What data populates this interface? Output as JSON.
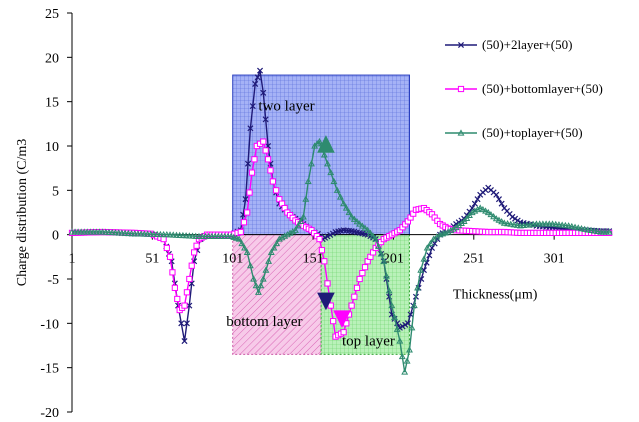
{
  "chart_data": {
    "type": "line",
    "ylabel": "Charge distribution (C/m3",
    "xlabel": "Thickness(μm)",
    "x_ticks": [
      "1",
      "51",
      "101",
      "151",
      "201",
      "251",
      "301"
    ],
    "y_ticks": [
      "25",
      "20",
      "15",
      "10",
      "5",
      "0",
      "-5",
      "-10",
      "-15",
      "-20"
    ],
    "xlim": [
      1,
      337
    ],
    "ylim": [
      -20,
      25
    ],
    "grid": false,
    "legend_position": "right",
    "regions": [
      {
        "label": "two layer",
        "x0": 101,
        "x1": 211,
        "y0": 0,
        "y1": 18,
        "color": "#4a63e6"
      },
      {
        "label": "bottom layer",
        "x0": 101,
        "x1": 156,
        "y0": -13.5,
        "y1": 0,
        "color": "#f0a6d9"
      },
      {
        "label": "top layer",
        "x0": 156,
        "x1": 211,
        "y0": -13.5,
        "y1": 0,
        "color": "#9be29b"
      }
    ],
    "series": [
      {
        "name": "(50)+2layer+(50)",
        "color": "#1f1a78",
        "marker": "x",
        "x": [
          1,
          20,
          40,
          50,
          58,
          63,
          67,
          71,
          74,
          77,
          81,
          85,
          90,
          100,
          106,
          109,
          112,
          115,
          118,
          120,
          123,
          126,
          130,
          135,
          140,
          145,
          150,
          154,
          157,
          160,
          165,
          170,
          175,
          180,
          185,
          190,
          195,
          200,
          205,
          210,
          215,
          220,
          225,
          230,
          235,
          240,
          245,
          250,
          255,
          260,
          265,
          270,
          275,
          280,
          290,
          300,
          310,
          320,
          330,
          337
        ],
        "y": [
          0.2,
          0.3,
          0.1,
          0.1,
          -0.5,
          -3,
          -8,
          -12,
          -8,
          -3,
          -0.5,
          0,
          0,
          0,
          0.5,
          4,
          12,
          17,
          18.5,
          16,
          10,
          6,
          3.5,
          2.5,
          1.8,
          1.2,
          0.4,
          0.1,
          -0.5,
          -0.2,
          0.3,
          0.5,
          0.4,
          0.2,
          0,
          -0.5,
          -3,
          -9,
          -10.5,
          -10,
          -7,
          -4,
          -1.5,
          0,
          0.5,
          1.2,
          1.8,
          3,
          4.5,
          5.3,
          4.5,
          3,
          2,
          1.4,
          1,
          0.8,
          0.6,
          0.5,
          0.4,
          0.4
        ]
      },
      {
        "name": "(50)+bottomlayer+(50)",
        "color": "#ff00ff",
        "marker": "square",
        "x": [
          1,
          20,
          40,
          50,
          58,
          62,
          65,
          68,
          71,
          74,
          77,
          80,
          85,
          90,
          100,
          106,
          110,
          113,
          116,
          120,
          123,
          126,
          130,
          135,
          140,
          145,
          150,
          155,
          158,
          162,
          165,
          170,
          175,
          180,
          185,
          190,
          195,
          200,
          205,
          210,
          215,
          220,
          225,
          230,
          235,
          240,
          250,
          260,
          270,
          280,
          290,
          300,
          310,
          320,
          330,
          337
        ],
        "y": [
          0.2,
          0.3,
          0.2,
          0.1,
          -0.5,
          -2.5,
          -6,
          -8.5,
          -8,
          -5,
          -2,
          -0.5,
          0,
          0,
          0,
          0.3,
          2.5,
          7,
          10,
          10.5,
          8.5,
          6,
          4,
          2.5,
          1.6,
          1,
          0.5,
          -0.5,
          -3,
          -8,
          -11.5,
          -11,
          -8,
          -5,
          -3,
          -1.5,
          -0.5,
          0,
          0.5,
          1.5,
          2.8,
          3,
          2.3,
          1.2,
          0.7,
          0.5,
          0.4,
          0.3,
          0.3,
          0.2,
          0.2,
          0.2,
          0.2,
          0.2,
          0.2,
          0.2
        ]
      },
      {
        "name": "(50)+toplayer+(50)",
        "color": "#2e8b6f",
        "marker": "triangle",
        "x": [
          1,
          20,
          40,
          60,
          80,
          100,
          105,
          110,
          114,
          117,
          120,
          125,
          130,
          135,
          140,
          145,
          148,
          152,
          155,
          158,
          162,
          166,
          170,
          175,
          180,
          185,
          190,
          195,
          200,
          205,
          208,
          211,
          214,
          218,
          222,
          226,
          230,
          235,
          240,
          245,
          250,
          255,
          260,
          265,
          270,
          280,
          290,
          300,
          310,
          320,
          330,
          337
        ],
        "y": [
          0.3,
          0.3,
          0.1,
          0,
          -0.2,
          -0.2,
          -0.5,
          -2,
          -5,
          -6.5,
          -5,
          -2,
          -0.5,
          0,
          0.5,
          2,
          6,
          10,
          10.5,
          9,
          7,
          5,
          3.5,
          2,
          1.2,
          0.5,
          -0.5,
          -3,
          -8,
          -12,
          -15.5,
          -13,
          -8,
          -4,
          -1.5,
          -0.5,
          0,
          0.3,
          0.8,
          1.5,
          2.5,
          3,
          2.5,
          1.8,
          1.3,
          1,
          1.2,
          1.2,
          1,
          0.6,
          0.3,
          0.3
        ]
      }
    ]
  }
}
